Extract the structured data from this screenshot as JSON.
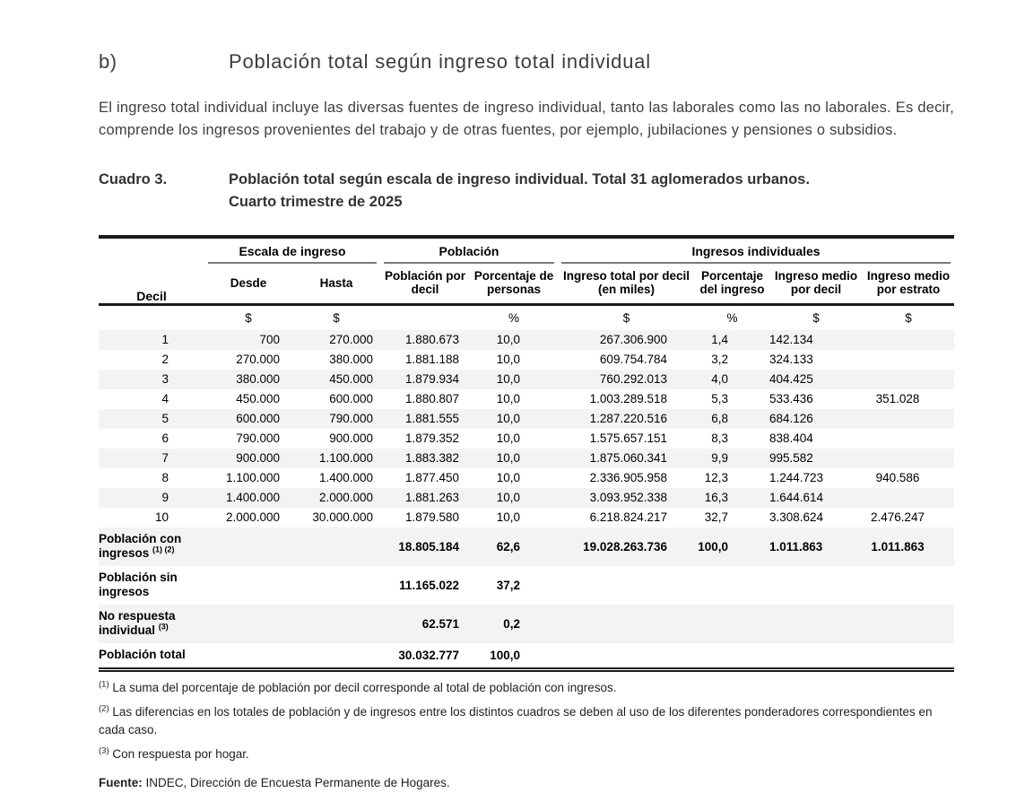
{
  "colors": {
    "row_shade": "#f3f3f3",
    "rule_dark": "#1b1b1b",
    "rule_gray": "#7a7a7a"
  },
  "section": {
    "label": "b)",
    "title": "Población total según ingreso total individual",
    "intro": "El ingreso total individual incluye las diversas fuentes de ingreso individual, tanto las laborales como las no laborales. Es decir, comprende los ingresos provenientes del trabajo y de otras fuentes, por ejemplo, jubilaciones y pensiones o subsidios."
  },
  "caption": {
    "label": "Cuadro 3.",
    "line1": "Población total según escala de ingreso individual. Total 31 aglomerados urbanos.",
    "line2": "Cuarto trimestre de 2025"
  },
  "table": {
    "decil_header": "Decil",
    "groups": [
      "Escala de ingreso",
      "Población",
      "Ingresos individuales"
    ],
    "columns": [
      "Desde",
      "Hasta",
      "Población por decil",
      "Porcentaje de personas",
      "Ingreso total por decil (en miles)",
      "Porcentaje del ingreso",
      "Ingreso medio por decil",
      "Ingreso medio por estrato"
    ],
    "units": [
      "$",
      "$",
      "",
      "%",
      "$",
      "%",
      "$",
      "$"
    ],
    "rows": [
      [
        "1",
        "700",
        "270.000",
        "1.880.673",
        "10,0",
        "267.306.900",
        "1,4",
        "142.134",
        ""
      ],
      [
        "2",
        "270.000",
        "380.000",
        "1.881.188",
        "10,0",
        "609.754.784",
        "3,2",
        "324.133",
        ""
      ],
      [
        "3",
        "380.000",
        "450.000",
        "1.879.934",
        "10,0",
        "760.292.013",
        "4,0",
        "404.425",
        ""
      ],
      [
        "4",
        "450.000",
        "600.000",
        "1.880.807",
        "10,0",
        "1.003.289.518",
        "5,3",
        "533.436",
        "351.028"
      ],
      [
        "5",
        "600.000",
        "790.000",
        "1.881.555",
        "10,0",
        "1.287.220.516",
        "6,8",
        "684.126",
        ""
      ],
      [
        "6",
        "790.000",
        "900.000",
        "1.879.352",
        "10,0",
        "1.575.657.151",
        "8,3",
        "838.404",
        ""
      ],
      [
        "7",
        "900.000",
        "1.100.000",
        "1.883.382",
        "10,0",
        "1.875.060.341",
        "9,9",
        "995.582",
        ""
      ],
      [
        "8",
        "1.100.000",
        "1.400.000",
        "1.877.450",
        "10,0",
        "2.336.905.958",
        "12,3",
        "1.244.723",
        "940.586"
      ],
      [
        "9",
        "1.400.000",
        "2.000.000",
        "1.881.263",
        "10,0",
        "3.093.952.338",
        "16,3",
        "1.644.614",
        ""
      ],
      [
        "10",
        "2.000.000",
        "30.000.000",
        "1.879.580",
        "10,0",
        "6.218.824.217",
        "32,7",
        "3.308.624",
        "2.476.247"
      ]
    ],
    "summary_rows": [
      {
        "label": "Población con ingresos",
        "sup": "(1) (2)",
        "values": [
          "18.805.184",
          "62,6",
          "19.028.263.736",
          "100,0",
          "1.011.863",
          "1.011.863"
        ]
      },
      {
        "label": "Población sin ingresos",
        "sup": "",
        "values": [
          "11.165.022",
          "37,2",
          "",
          "",
          "",
          ""
        ]
      },
      {
        "label": "No respuesta individual",
        "sup": "(3)",
        "values": [
          "62.571",
          "0,2",
          "",
          "",
          "",
          ""
        ]
      },
      {
        "label": "Población total",
        "sup": "",
        "values": [
          "30.032.777",
          "100,0",
          "",
          "",
          "",
          ""
        ]
      }
    ]
  },
  "footnotes": [
    {
      "marker": "(1)",
      "text": "La suma del porcentaje de población por decil corresponde al total de población con ingresos."
    },
    {
      "marker": "(2)",
      "text": "Las diferencias en los totales de población y de ingresos entre los distintos cuadros se deben al uso de los diferentes ponderadores correspondientes en cada caso."
    },
    {
      "marker": "(3)",
      "text": "Con respuesta por hogar."
    }
  ],
  "source": {
    "label": "Fuente:",
    "text": "INDEC, Dirección de Encuesta Permanente de Hogares."
  }
}
